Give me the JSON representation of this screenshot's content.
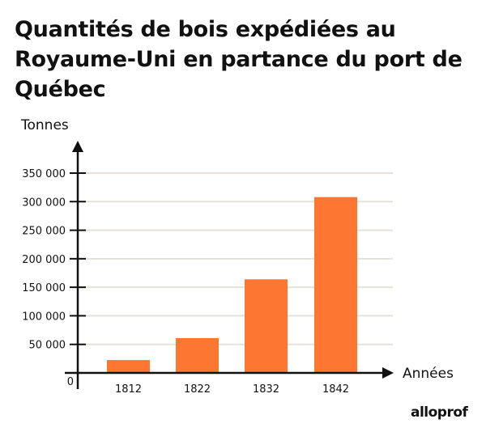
{
  "chart_data": {
    "type": "bar",
    "title": "Quantités de bois expédiées au Royaume-Uni en partance du port de Québec",
    "xlabel": "Années",
    "ylabel": "Tonnes",
    "categories": [
      "1812",
      "1822",
      "1832",
      "1842"
    ],
    "values": [
      22500,
      61000,
      164000,
      308000
    ],
    "ylim": [
      0,
      350000
    ],
    "yticks": [
      0,
      50000,
      100000,
      150000,
      200000,
      250000,
      300000,
      350000
    ],
    "ytick_labels": [
      "0",
      "50 000",
      "100 000",
      "150 000",
      "200 000",
      "250 000",
      "300 000",
      "350 000"
    ],
    "grid": true,
    "bar_color": "#fd7733",
    "grid_color": "#e6e2da"
  },
  "logo": "alloprof"
}
